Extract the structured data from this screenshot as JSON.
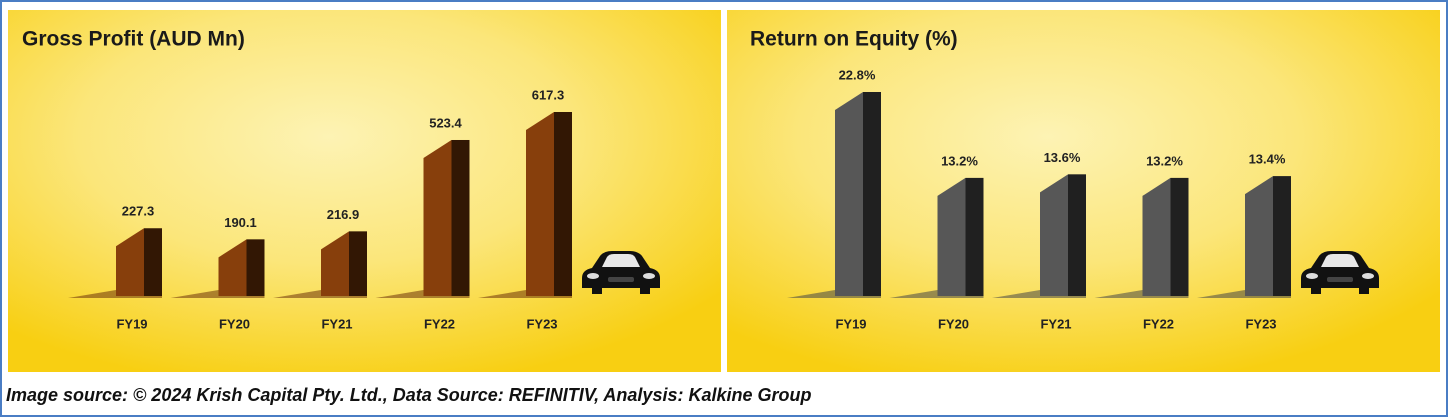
{
  "chart_data": [
    {
      "type": "bar",
      "title": "Gross Profit (AUD Mn)",
      "categories": [
        "FY19",
        "FY20",
        "FY21",
        "FY22",
        "FY23"
      ],
      "values": [
        227.3,
        190.1,
        216.9,
        523.4,
        617.3
      ],
      "color": "#5a2a08"
    },
    {
      "type": "bar",
      "title": "Return on Equity (%)",
      "categories": [
        "FY19",
        "FY20",
        "FY21",
        "FY22",
        "FY23"
      ],
      "values": [
        22.8,
        13.2,
        13.6,
        13.2,
        13.4
      ],
      "value_labels": [
        "22.8%",
        "13.2%",
        "13.6%",
        "13.2%",
        "13.4%"
      ],
      "color": "#3a3a3a"
    }
  ],
  "caption": "Image source: © 2024 Krish Capital Pty. Ltd., Data Source: REFINITIV, Analysis: Kalkine Group"
}
